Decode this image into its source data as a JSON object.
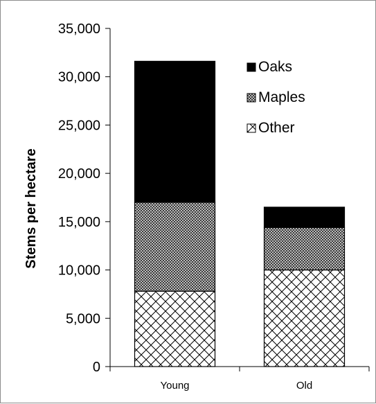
{
  "chart_data": {
    "type": "bar",
    "stacked": true,
    "title": "",
    "xlabel": "",
    "ylabel": "Stems per hectare",
    "categories": [
      "Young",
      "Old"
    ],
    "ylim": [
      0,
      35000
    ],
    "yticks": [
      0,
      5000,
      10000,
      15000,
      20000,
      25000,
      30000,
      35000
    ],
    "ytick_labels": [
      "0",
      "5,000",
      "10,000",
      "15,000",
      "20,000",
      "25,000",
      "30,000",
      "35,000"
    ],
    "series": [
      {
        "name": "Other",
        "values": [
          7800,
          10000
        ],
        "pattern": "diagonal-cross",
        "color": "#000000"
      },
      {
        "name": "Maples",
        "values": [
          9200,
          4400
        ],
        "pattern": "checker",
        "color": "#555555"
      },
      {
        "name": "Oaks",
        "values": [
          14600,
          2100
        ],
        "pattern": "solid",
        "color": "#000000"
      }
    ],
    "legend": {
      "position": "right",
      "order": [
        "Oaks",
        "Maples",
        "Other"
      ]
    },
    "grid": false
  }
}
